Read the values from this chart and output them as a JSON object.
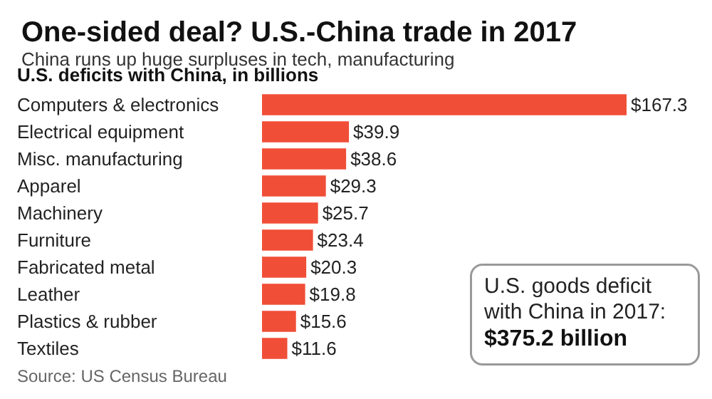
{
  "chart_data": {
    "type": "bar",
    "orientation": "horizontal",
    "title": "One-sided deal? U.S.-China trade in 2017",
    "subtitle": "China runs up huge surpluses in tech, manufacturing",
    "xlabel": "U.S. deficits with China, in billions",
    "categories": [
      "Computers & electronics",
      "Electrical equipment",
      "Misc. manufacturing",
      "Apparel",
      "Machinery",
      "Furniture",
      "Fabricated metal",
      "Leather",
      "Plastics & rubber",
      "Textiles"
    ],
    "annotations": [
      "U.S. goods deficit\nwith China in 2017:",
      "$375.2 billion",
      "Source: US Census Bureau"
    ],
    "values": [
      167.3,
      39.9,
      38.6,
      29.3,
      25.7,
      23.4,
      20.3,
      19.8,
      15.6,
      11.6
    ],
    "value_labels": [
      "$167.3",
      "$39.9",
      "$38.6",
      "$29.3",
      "$25.7",
      "$23.4",
      "$20.3",
      "$19.8",
      "$15.6",
      "$11.6"
    ],
    "color": "#f04e37"
  }
}
